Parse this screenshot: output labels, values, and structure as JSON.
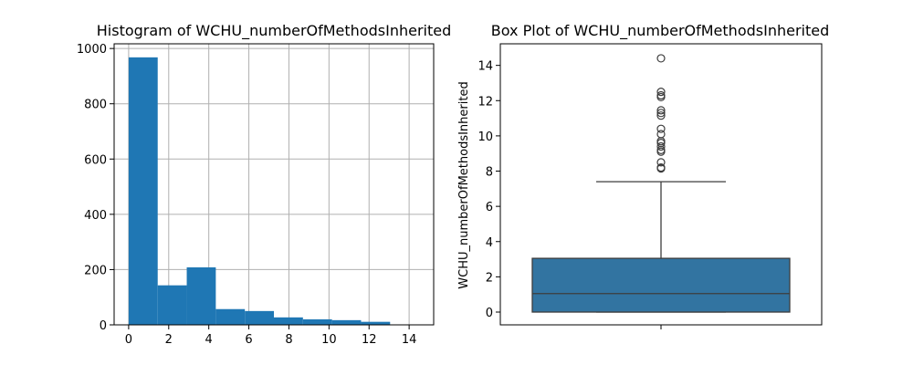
{
  "chart_data": [
    {
      "type": "bar",
      "title": "Histogram of WCHU_numberOfMethodsInherited",
      "xlabel": "",
      "ylabel": "",
      "grid": true,
      "xlim": [
        -0.725,
        15.225
      ],
      "ylim": [
        0,
        1017
      ],
      "xticks": [
        0,
        2,
        4,
        6,
        8,
        10,
        12,
        14
      ],
      "yticks": [
        0,
        200,
        400,
        600,
        800,
        1000
      ],
      "bin_edges": [
        0,
        1.45,
        2.9,
        4.35,
        5.8,
        7.25,
        8.7,
        10.15,
        11.6,
        13.05,
        14.5
      ],
      "values": [
        968,
        143,
        208,
        57,
        50,
        27,
        20,
        17,
        11,
        1
      ],
      "bar_color": "#1f77b4"
    },
    {
      "type": "box",
      "title": "Box Plot of WCHU_numberOfMethodsInherited",
      "xlabel": "",
      "ylabel": "WCHU_numberOfMethodsInherited",
      "grid": false,
      "ylim": [
        -0.725,
        15.225
      ],
      "yticks": [
        0,
        2,
        4,
        6,
        8,
        10,
        12,
        14
      ],
      "min": 0,
      "q1": 0,
      "median": 1.05,
      "q3": 3.05,
      "whisker_low": 0,
      "whisker_high": 7.4,
      "outliers": [
        8.15,
        8.2,
        8.5,
        9.1,
        9.2,
        9.4,
        9.6,
        9.7,
        10.1,
        10.4,
        11.15,
        11.3,
        11.45,
        12.2,
        12.3,
        12.5,
        14.4
      ],
      "box_color": "#3274a1"
    }
  ]
}
